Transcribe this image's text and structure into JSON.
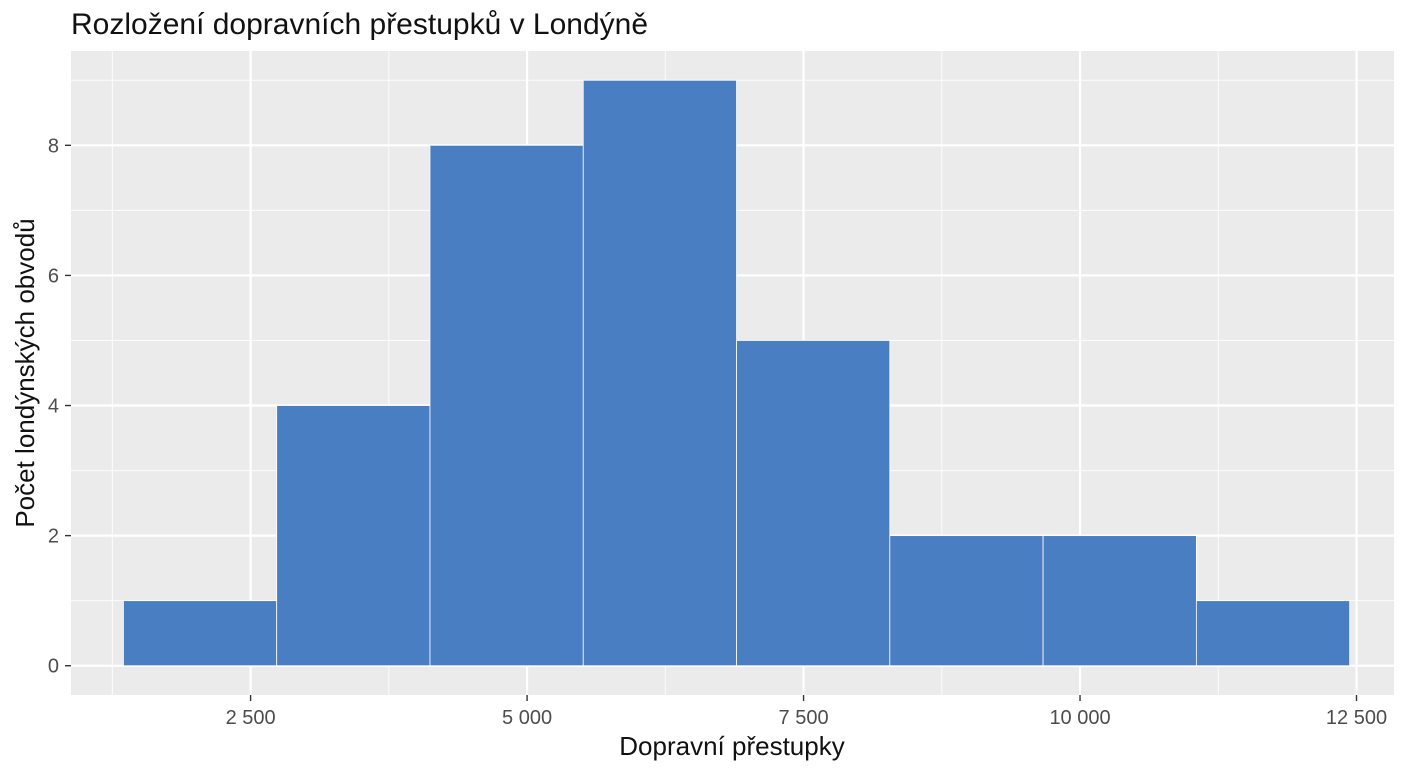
{
  "chart_data": {
    "type": "bar",
    "title": "Rozložení dopravních přestupků v Londýně",
    "xlabel": "Dopravní přestupky",
    "ylabel": "Počet londýnských obvodů",
    "bins": [
      {
        "x0": 1350,
        "x1": 2736,
        "count": 1
      },
      {
        "x0": 2736,
        "x1": 4122,
        "count": 4
      },
      {
        "x0": 4122,
        "x1": 5508,
        "count": 8
      },
      {
        "x0": 5508,
        "x1": 6894,
        "count": 9
      },
      {
        "x0": 6894,
        "x1": 8280,
        "count": 5
      },
      {
        "x0": 8280,
        "x1": 9666,
        "count": 2
      },
      {
        "x0": 9666,
        "x1": 11052,
        "count": 2
      },
      {
        "x0": 11052,
        "x1": 12438,
        "count": 1
      }
    ],
    "xlim": [
      876,
      12839
    ],
    "ylim": [
      -0.45,
      9.45
    ],
    "x_ticks": [
      {
        "value": 2500,
        "label": "2 500"
      },
      {
        "value": 5000,
        "label": "5 000"
      },
      {
        "value": 7500,
        "label": "7 500"
      },
      {
        "value": 10000,
        "label": "10 000"
      },
      {
        "value": 12500,
        "label": "12 500"
      }
    ],
    "y_ticks": [
      {
        "value": 0,
        "label": "0"
      },
      {
        "value": 2,
        "label": "2"
      },
      {
        "value": 4,
        "label": "4"
      },
      {
        "value": 6,
        "label": "6"
      },
      {
        "value": 8,
        "label": "8"
      }
    ],
    "grid": true,
    "legend": "none",
    "colors": {
      "bar_fill": "#4a7ec3",
      "panel_background": "#ebebeb",
      "grid": "#ffffff"
    }
  }
}
